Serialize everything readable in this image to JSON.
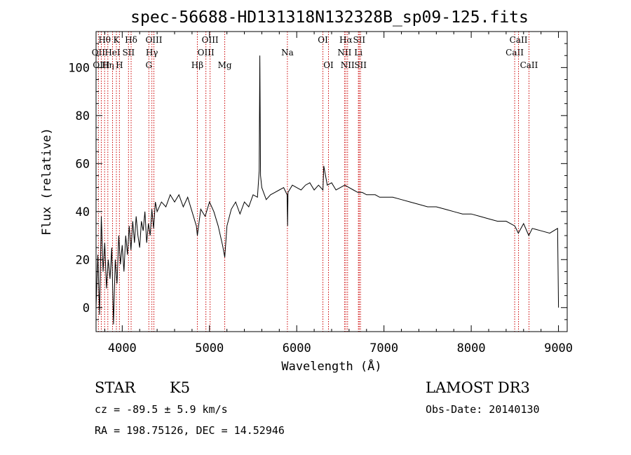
{
  "chart_data": {
    "type": "line",
    "title": "spec-56688-HD131318N132328B_sp09-125.fits",
    "xlabel": "Wavelength (Å)",
    "ylabel": "Flux (relative)",
    "xlim": [
      3700,
      9100
    ],
    "ylim": [
      -10,
      115
    ],
    "xticks": [
      4000,
      5000,
      6000,
      7000,
      8000,
      9000
    ],
    "yticks": [
      0,
      20,
      40,
      60,
      80,
      100
    ],
    "series": [
      {
        "name": "flux",
        "x": [
          3700,
          3720,
          3740,
          3760,
          3780,
          3800,
          3820,
          3840,
          3860,
          3880,
          3900,
          3920,
          3940,
          3960,
          3980,
          4000,
          4020,
          4040,
          4060,
          4080,
          4100,
          4120,
          4140,
          4160,
          4180,
          4200,
          4220,
          4240,
          4260,
          4280,
          4300,
          4320,
          4340,
          4360,
          4380,
          4400,
          4450,
          4500,
          4550,
          4600,
          4650,
          4700,
          4750,
          4800,
          4850,
          4861,
          4900,
          4950,
          5000,
          5050,
          5100,
          5150,
          5175,
          5200,
          5250,
          5300,
          5350,
          5400,
          5450,
          5500,
          5550,
          5570,
          5577,
          5585,
          5600,
          5650,
          5700,
          5750,
          5800,
          5850,
          5890,
          5895,
          5900,
          5950,
          6000,
          6050,
          6100,
          6150,
          6200,
          6250,
          6300,
          6310,
          6350,
          6400,
          6450,
          6500,
          6550,
          6600,
          6650,
          6700,
          6750,
          6800,
          6850,
          6900,
          6950,
          7000,
          7100,
          7200,
          7300,
          7400,
          7500,
          7600,
          7700,
          7800,
          7900,
          8000,
          8100,
          8200,
          8300,
          8400,
          8500,
          8540,
          8600,
          8660,
          8700,
          8800,
          8900,
          8990,
          9000
        ],
        "y": [
          0,
          22,
          -3,
          38,
          15,
          27,
          8,
          20,
          12,
          25,
          -7,
          20,
          10,
          30,
          18,
          26,
          15,
          30,
          22,
          34,
          24,
          36,
          27,
          38,
          30,
          25,
          36,
          32,
          40,
          27,
          35,
          30,
          41,
          33,
          44,
          40,
          44,
          42,
          47,
          44,
          47,
          42,
          46,
          40,
          34,
          30,
          41,
          38,
          44,
          40,
          34,
          26,
          21,
          34,
          41,
          44,
          39,
          44,
          42,
          47,
          46,
          57,
          105,
          55,
          50,
          45,
          47,
          48,
          49,
          50,
          47,
          34,
          48,
          51,
          50,
          49,
          51,
          52,
          49,
          51,
          49,
          59,
          51,
          52,
          49,
          50,
          51,
          50,
          49,
          48,
          48,
          47,
          47,
          47,
          46,
          46,
          46,
          45,
          44,
          43,
          42,
          42,
          41,
          40,
          39,
          39,
          38,
          37,
          36,
          36,
          34,
          31,
          35,
          30,
          33,
          32,
          31,
          33,
          0
        ]
      }
    ],
    "line_markers": [
      {
        "name": "OII",
        "wavelength": 3727,
        "row": 1
      },
      {
        "name": "OIII",
        "wavelength": 3760,
        "row": 2
      },
      {
        "name": "Hθ",
        "wavelength": 3798,
        "row": 0
      },
      {
        "name": "Hη",
        "wavelength": 3835,
        "row": 2
      },
      {
        "name": "HeI",
        "wavelength": 3889,
        "row": 1
      },
      {
        "name": "K",
        "wavelength": 3933,
        "row": 0
      },
      {
        "name": "H",
        "wavelength": 3968,
        "row": 2
      },
      {
        "name": "SII",
        "wavelength": 4072,
        "row": 1
      },
      {
        "name": "Hδ",
        "wavelength": 4102,
        "row": 0
      },
      {
        "name": "G",
        "wavelength": 4305,
        "row": 2
      },
      {
        "name": "Hγ",
        "wavelength": 4340,
        "row": 1
      },
      {
        "name": "OIII",
        "wavelength": 4363,
        "row": 0
      },
      {
        "name": "Hβ",
        "wavelength": 4861,
        "row": 2
      },
      {
        "name": "OIII",
        "wavelength": 4959,
        "row": 1
      },
      {
        "name": "OIII",
        "wavelength": 5007,
        "row": 0
      },
      {
        "name": "Mg",
        "wavelength": 5175,
        "row": 2
      },
      {
        "name": "Na",
        "wavelength": 5893,
        "row": 1
      },
      {
        "name": "OI",
        "wavelength": 6300,
        "row": 0
      },
      {
        "name": "OI",
        "wavelength": 6364,
        "row": 2
      },
      {
        "name": "NII",
        "wavelength": 6548,
        "row": 1
      },
      {
        "name": "Hα",
        "wavelength": 6563,
        "row": 0
      },
      {
        "name": "NII",
        "wavelength": 6583,
        "row": 2
      },
      {
        "name": "Li",
        "wavelength": 6707,
        "row": 1
      },
      {
        "name": "SII",
        "wavelength": 6716,
        "row": 0
      },
      {
        "name": "SII",
        "wavelength": 6731,
        "row": 2
      },
      {
        "name": "CaII",
        "wavelength": 8498,
        "row": 1
      },
      {
        "name": "CaII",
        "wavelength": 8542,
        "row": 0
      },
      {
        "name": "CaII",
        "wavelength": 8662,
        "row": 2
      }
    ]
  },
  "info": {
    "object_class": "STAR",
    "subclass": "K5",
    "survey": "LAMOST DR3",
    "cz": "cz = -89.5 ± 5.9 km/s",
    "obs_date": "Obs-Date: 20140130",
    "coords": "RA = 198.75126, DEC =  14.52946"
  },
  "colors": {
    "spectrum": "#000000",
    "marker": "#cc0000",
    "axis": "#000000"
  }
}
